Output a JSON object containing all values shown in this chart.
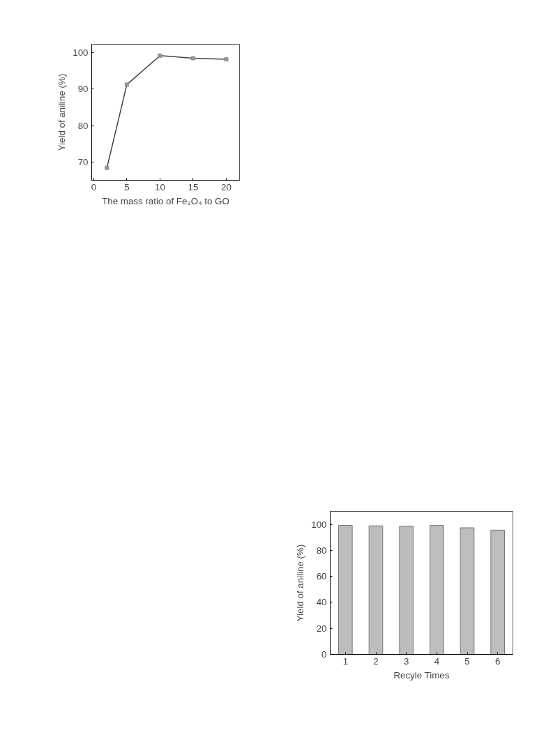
{
  "chart_data": [
    {
      "type": "line",
      "xlabel": "The mass ratio of Fe₃O₄ to GO",
      "ylabel": "Yield of aniline (%)",
      "x": [
        2,
        5,
        10,
        15,
        20
      ],
      "series": [
        {
          "color": "#404040",
          "values": [
            68.5,
            91.2,
            99.1,
            98.4,
            98.1
          ]
        }
      ],
      "marker": "square",
      "xlim": [
        -0.3,
        22
      ],
      "ylim": [
        65.1,
        102.2
      ],
      "xticks": [
        0,
        5,
        10,
        15,
        20
      ],
      "yticks": [
        70,
        80,
        90,
        100
      ]
    },
    {
      "type": "bar",
      "xlabel": "Recyle Times",
      "ylabel": "Yield of aniline (%)",
      "categories": [
        "1",
        "2",
        "3",
        "4",
        "5",
        "6"
      ],
      "values": [
        99.3,
        98.9,
        98.7,
        99.2,
        97.4,
        95.6
      ],
      "color": "#bdbdbd",
      "ylim": [
        0,
        110
      ],
      "yticks": [
        0,
        20,
        40,
        60,
        80,
        100
      ]
    }
  ]
}
